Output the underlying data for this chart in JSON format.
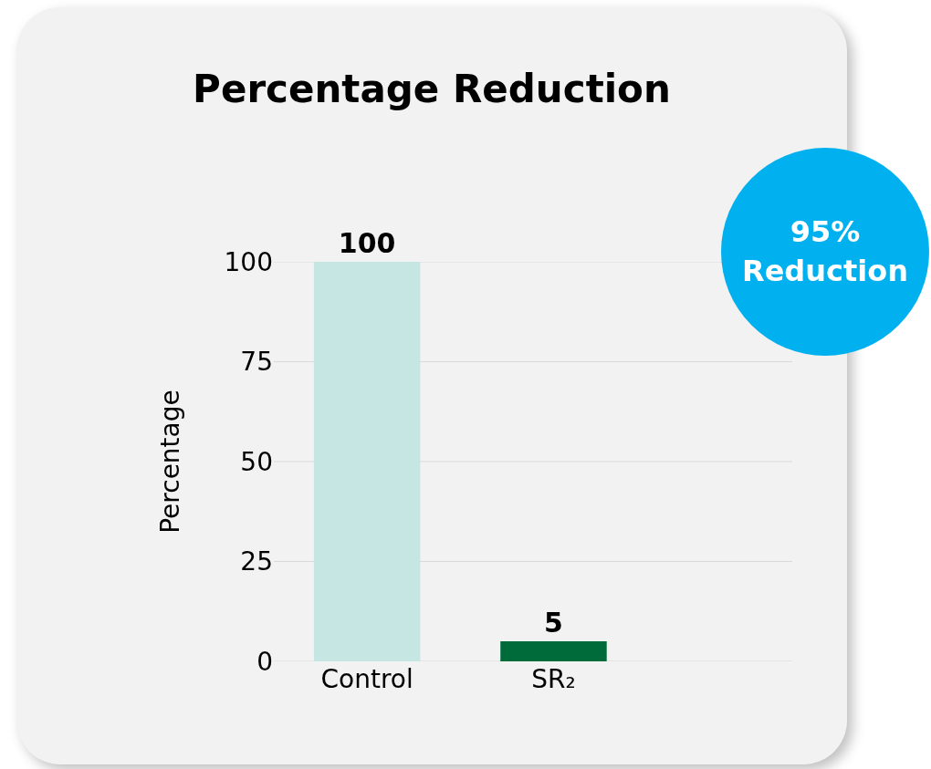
{
  "chart_data": {
    "type": "bar",
    "title": "Percentage Reduction",
    "ylabel": "Percentage",
    "categories": [
      "Control",
      "SR₂"
    ],
    "values": [
      100,
      5
    ],
    "colors": [
      "#c5e6e3",
      "#006b3a"
    ],
    "ylim": [
      0,
      100
    ],
    "yticks": [
      0,
      25,
      50,
      75,
      100
    ],
    "grid": "y",
    "data_labels": true,
    "annotations": [
      "95% Reduction"
    ]
  }
}
